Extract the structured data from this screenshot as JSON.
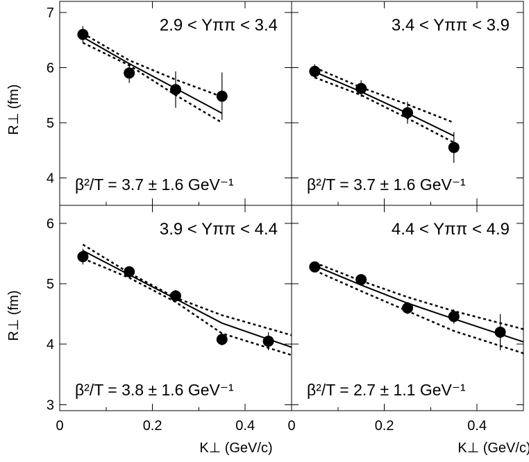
{
  "chart_data": {
    "type": "scatter",
    "xlabel": "K⊥ (GeV/c)",
    "ylabel": "R⊥ (fm)",
    "x_ticks": [
      "0",
      "0.2",
      "0.4"
    ],
    "xlim": [
      0,
      0.5
    ],
    "panels": [
      {
        "id": "top-left",
        "title": "2.9 < Yππ < 3.4",
        "annotation": "β²/T = 3.7 ± 1.6 GeV⁻¹",
        "ylim": [
          3.5,
          7.2
        ],
        "y_ticks": [
          "4",
          "5",
          "6",
          "7"
        ],
        "points": [
          {
            "x": 0.05,
            "y": 6.6,
            "err": 0.15
          },
          {
            "x": 0.15,
            "y": 5.9,
            "err": 0.18
          },
          {
            "x": 0.25,
            "y": 5.6,
            "err": 0.33
          },
          {
            "x": 0.35,
            "y": 5.48,
            "err": 0.43
          }
        ],
        "fit": [
          [
            0.05,
            6.55
          ],
          [
            0.15,
            6.07
          ],
          [
            0.25,
            5.62
          ],
          [
            0.35,
            5.17
          ]
        ],
        "fit_upper": [
          [
            0.05,
            6.62
          ],
          [
            0.15,
            6.13
          ],
          [
            0.25,
            5.78
          ],
          [
            0.35,
            5.47
          ]
        ],
        "fit_lower": [
          [
            0.05,
            6.45
          ],
          [
            0.15,
            6.04
          ],
          [
            0.25,
            5.5
          ],
          [
            0.35,
            5.0
          ]
        ]
      },
      {
        "id": "top-right",
        "title": "3.4 < Yππ < 3.9",
        "annotation": "β²/T = 3.7 ± 1.6 GeV⁻¹",
        "ylim": [
          3.5,
          7.2
        ],
        "y_ticks": [
          "4",
          "5",
          "6",
          "7"
        ],
        "points": [
          {
            "x": 0.05,
            "y": 5.93,
            "err": 0.13
          },
          {
            "x": 0.15,
            "y": 5.62,
            "err": 0.15
          },
          {
            "x": 0.25,
            "y": 5.18,
            "err": 0.2
          },
          {
            "x": 0.35,
            "y": 4.55,
            "err": 0.28
          }
        ],
        "fit": [
          [
            0.05,
            5.92
          ],
          [
            0.15,
            5.56
          ],
          [
            0.25,
            5.17
          ],
          [
            0.35,
            4.76
          ]
        ],
        "fit_upper": [
          [
            0.05,
            6.0
          ],
          [
            0.15,
            5.64
          ],
          [
            0.25,
            5.33
          ],
          [
            0.35,
            5.0
          ]
        ],
        "fit_lower": [
          [
            0.05,
            5.82
          ],
          [
            0.15,
            5.5
          ],
          [
            0.25,
            5.08
          ],
          [
            0.35,
            4.64
          ]
        ]
      },
      {
        "id": "bottom-left",
        "title": "3.9 < Yππ < 4.4",
        "annotation": "β²/T = 3.8 ± 1.6 GeV⁻¹",
        "ylim": [
          2.9,
          6.3
        ],
        "y_ticks": [
          "3",
          "4",
          "5",
          "6"
        ],
        "points": [
          {
            "x": 0.05,
            "y": 5.45,
            "err": 0.13
          },
          {
            "x": 0.15,
            "y": 5.2,
            "err": 0.08
          },
          {
            "x": 0.25,
            "y": 4.8,
            "err": 0.1
          },
          {
            "x": 0.35,
            "y": 4.08,
            "err": 0.1
          },
          {
            "x": 0.45,
            "y": 4.05,
            "err": 0.15
          }
        ],
        "fit": [
          [
            0.05,
            5.55
          ],
          [
            0.15,
            5.15
          ],
          [
            0.25,
            4.75
          ],
          [
            0.35,
            4.35
          ],
          [
            0.5,
            3.95
          ]
        ],
        "fit_upper": [
          [
            0.05,
            5.65
          ],
          [
            0.15,
            5.18
          ],
          [
            0.25,
            4.77
          ],
          [
            0.35,
            4.48
          ],
          [
            0.5,
            4.15
          ]
        ],
        "fit_lower": [
          [
            0.05,
            5.42
          ],
          [
            0.15,
            5.1
          ],
          [
            0.25,
            4.7
          ],
          [
            0.35,
            4.18
          ],
          [
            0.5,
            3.82
          ]
        ]
      },
      {
        "id": "bottom-right",
        "title": "4.4 < Yππ < 4.9",
        "annotation": "β²/T = 2.7 ± 1.1 GeV⁻¹",
        "ylim": [
          2.9,
          6.3
        ],
        "y_ticks": [
          "3",
          "4",
          "5",
          "6"
        ],
        "points": [
          {
            "x": 0.05,
            "y": 5.28,
            "err": 0.08
          },
          {
            "x": 0.15,
            "y": 5.07,
            "err": 0.08
          },
          {
            "x": 0.25,
            "y": 4.6,
            "err": 0.1
          },
          {
            "x": 0.35,
            "y": 4.46,
            "err": 0.12
          },
          {
            "x": 0.45,
            "y": 4.2,
            "err": 0.3
          }
        ],
        "fit": [
          [
            0.05,
            5.3
          ],
          [
            0.15,
            4.98
          ],
          [
            0.25,
            4.68
          ],
          [
            0.35,
            4.42
          ],
          [
            0.5,
            4.04
          ]
        ],
        "fit_upper": [
          [
            0.05,
            5.35
          ],
          [
            0.15,
            5.05
          ],
          [
            0.25,
            4.78
          ],
          [
            0.35,
            4.55
          ],
          [
            0.5,
            4.25
          ]
        ],
        "fit_lower": [
          [
            0.05,
            5.22
          ],
          [
            0.15,
            4.88
          ],
          [
            0.25,
            4.55
          ],
          [
            0.35,
            4.22
          ],
          [
            0.5,
            3.85
          ]
        ]
      }
    ]
  }
}
